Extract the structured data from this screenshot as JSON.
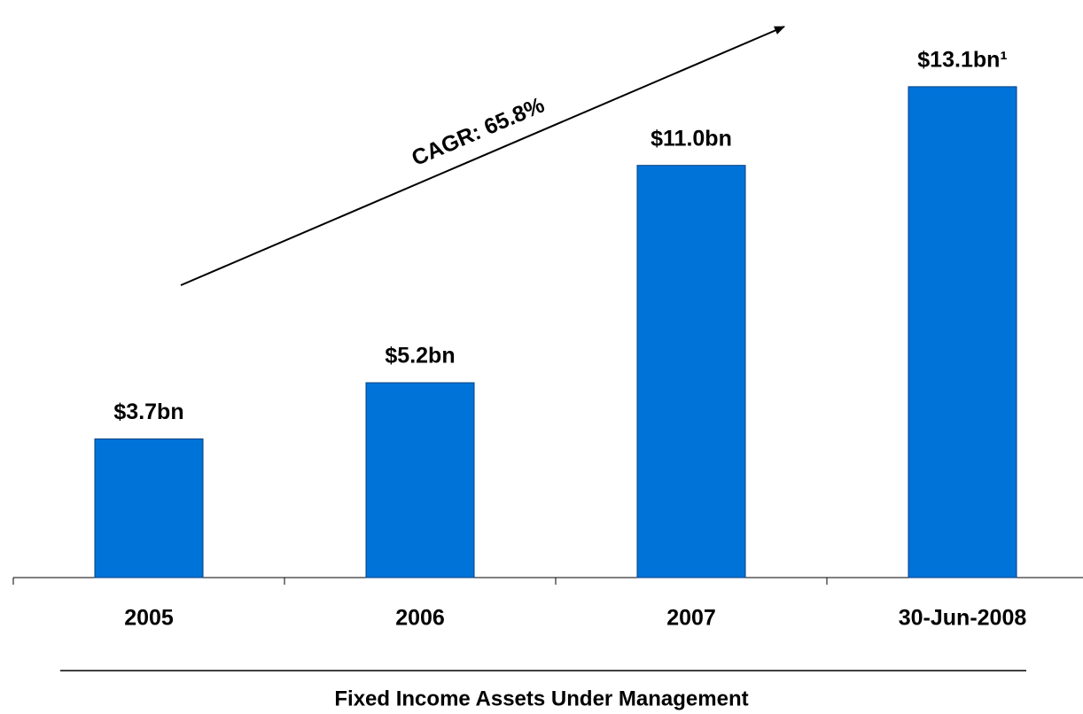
{
  "chart_data": {
    "type": "bar",
    "categories": [
      "2005",
      "2006",
      "2007",
      "30-Jun-2008"
    ],
    "values": [
      3.7,
      5.2,
      11.0,
      13.1
    ],
    "value_labels": [
      "$3.7bn",
      "$5.2bn",
      "$11.0bn",
      "$13.1bn¹"
    ],
    "color": "#0073d9",
    "annotation": "CAGR: 65.8%",
    "footer": "Fixed Income Assets Under Management"
  }
}
